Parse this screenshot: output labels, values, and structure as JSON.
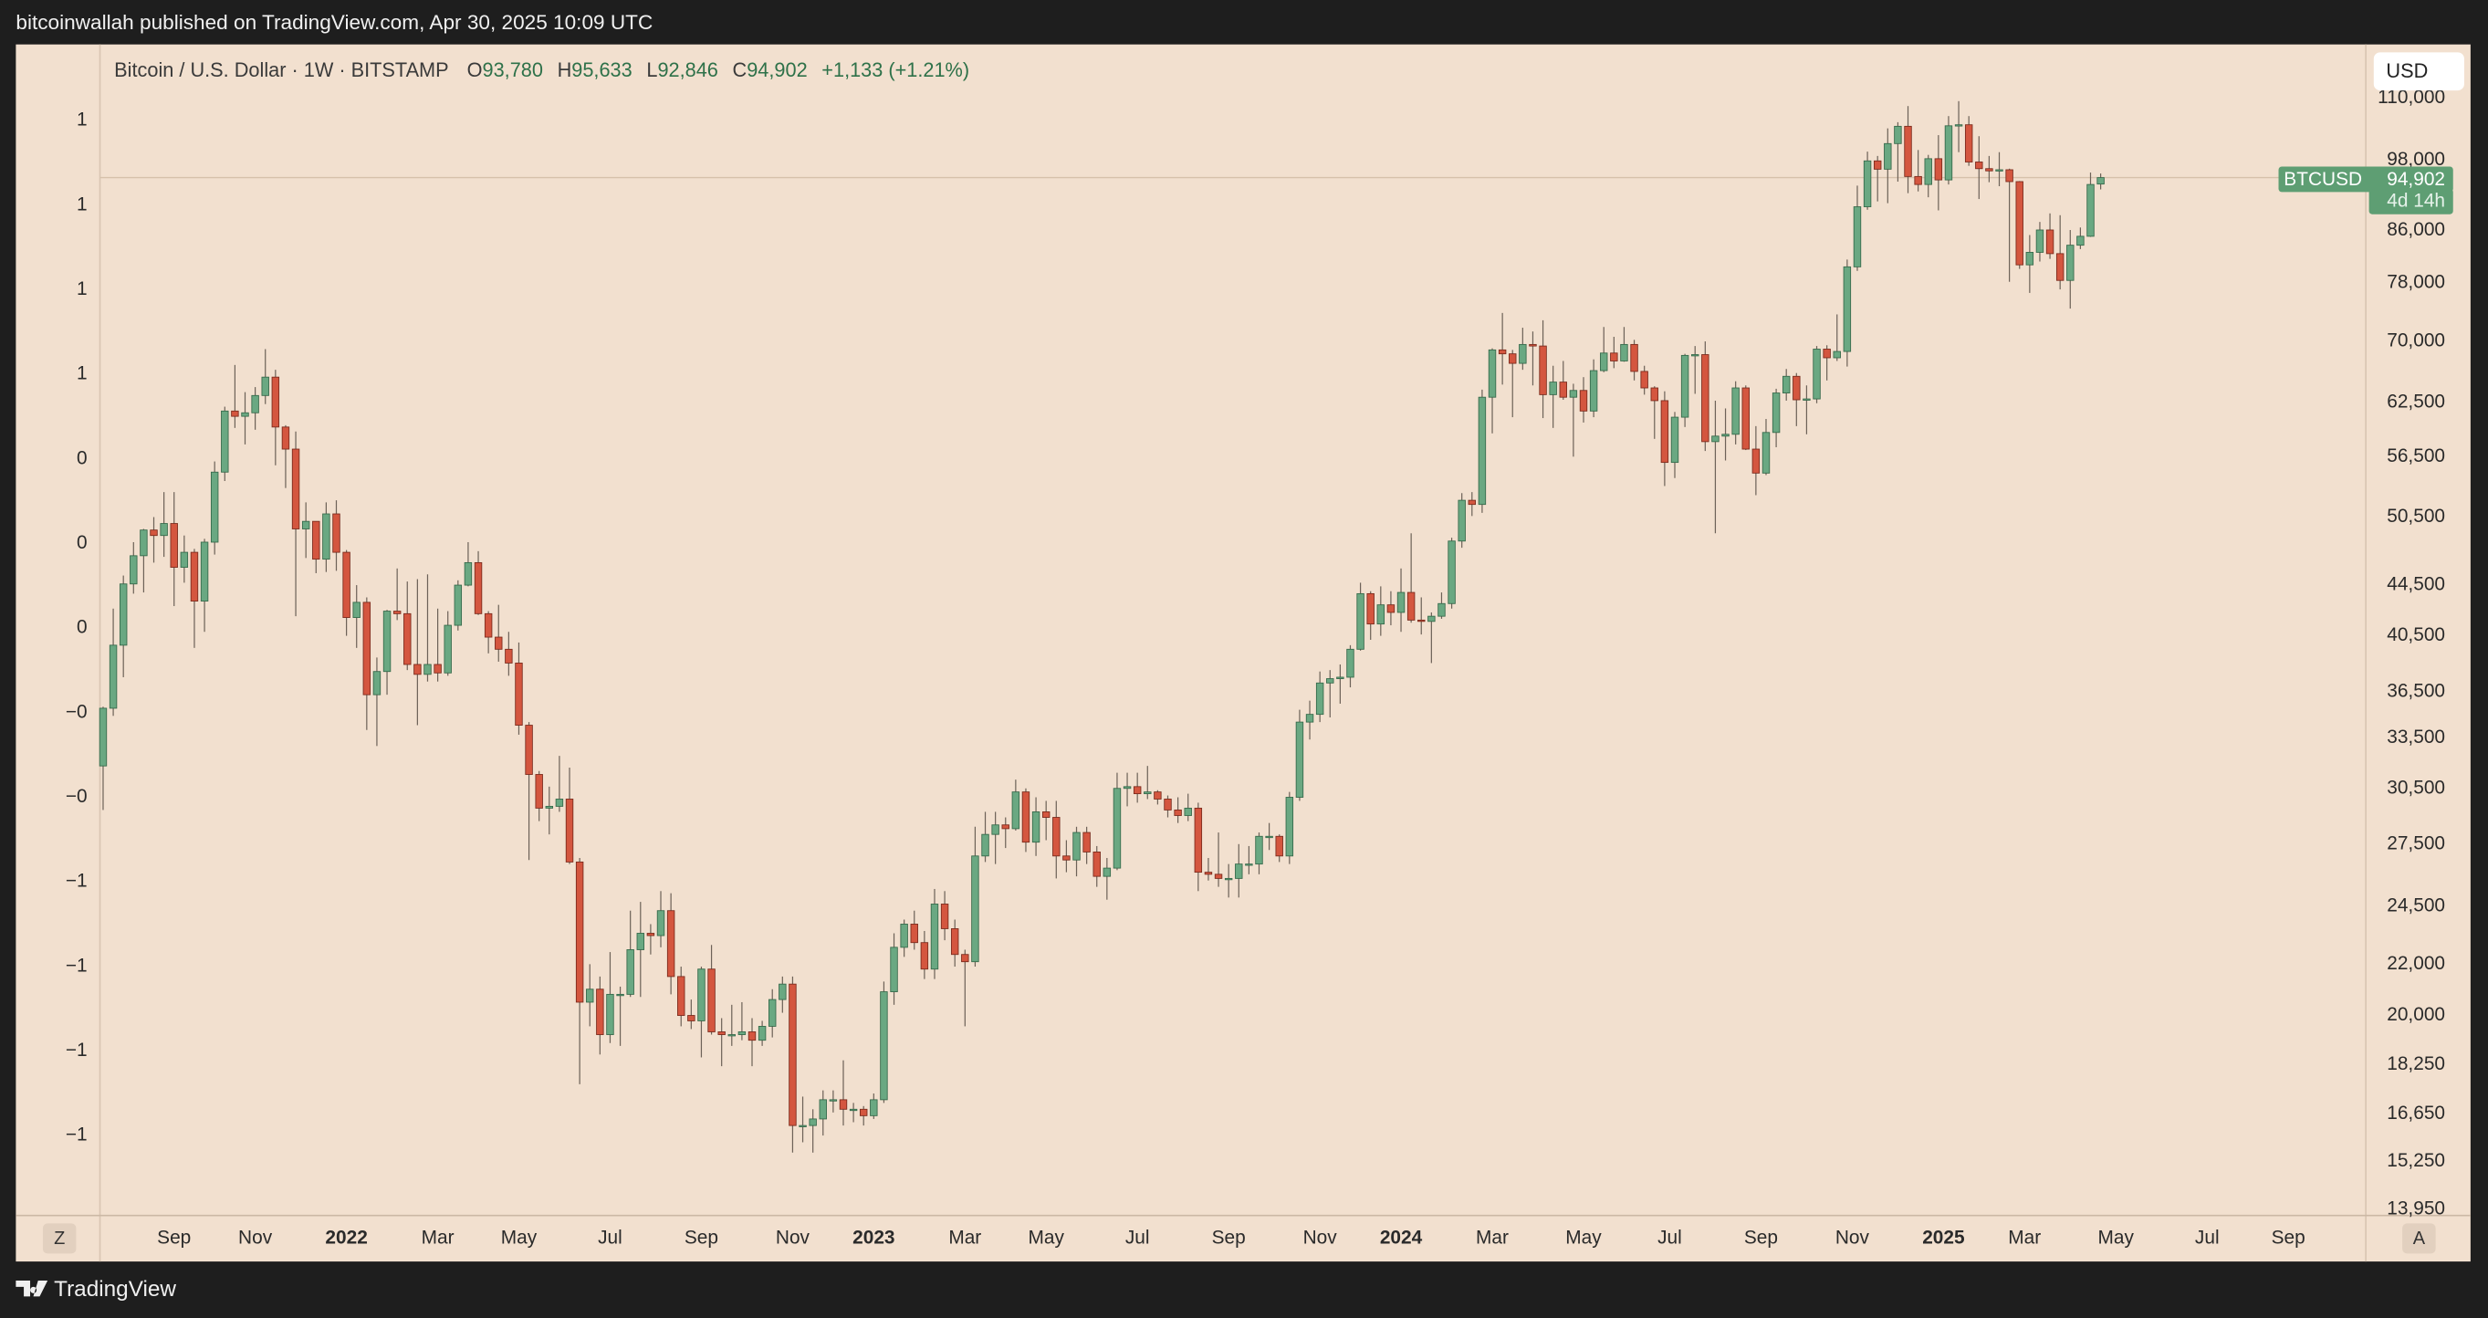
{
  "header": {
    "publisher": "bitcoinwallah published on TradingView.com, Apr 30, 2025 10:09 UTC"
  },
  "legend": {
    "symbol": "Bitcoin / U.S. Dollar · 1W · BITSTAMP",
    "ohlc": [
      {
        "key": "O",
        "value": "93,780"
      },
      {
        "key": "H",
        "value": "95,633"
      },
      {
        "key": "L",
        "value": "92,846"
      },
      {
        "key": "C",
        "value": "94,902"
      }
    ],
    "change": "+1,133 (+1.21%)"
  },
  "currency": "USD",
  "price_tag": {
    "symbol": "BTCUSD",
    "value": "94,902",
    "countdown": "4d 14h"
  },
  "left_scale": [
    "1",
    "1",
    "1",
    "1",
    "0",
    "0",
    "0",
    "−0",
    "−0",
    "−1",
    "−1",
    "−1",
    "−1"
  ],
  "axis_buttons": {
    "left": "Z",
    "right": "A"
  },
  "brand": "TradingView",
  "chart_data": {
    "type": "candlestick",
    "log_scale": true,
    "grid": false,
    "up_color": "#6aa882",
    "down_color": "#d4563f",
    "xlim": [
      -0.31,
      223.15
    ],
    "xticks": [
      {
        "value": 7,
        "label": "Sep"
      },
      {
        "value": 15,
        "label": "Nov"
      },
      {
        "value": 24,
        "label": "2022"
      },
      {
        "value": 33,
        "label": "Mar"
      },
      {
        "value": 41,
        "label": "May"
      },
      {
        "value": 50,
        "label": "Jul"
      },
      {
        "value": 59,
        "label": "Sep"
      },
      {
        "value": 68,
        "label": "Nov"
      },
      {
        "value": 76,
        "label": "2023"
      },
      {
        "value": 85,
        "label": "Mar"
      },
      {
        "value": 93,
        "label": "May"
      },
      {
        "value": 102,
        "label": "Jul"
      },
      {
        "value": 111,
        "label": "Sep"
      },
      {
        "value": 120,
        "label": "Nov"
      },
      {
        "value": 128,
        "label": "2024"
      },
      {
        "value": 137,
        "label": "Mar"
      },
      {
        "value": 146,
        "label": "May"
      },
      {
        "value": 154.5,
        "label": "Jul"
      },
      {
        "value": 163.5,
        "label": "Sep"
      },
      {
        "value": 172.5,
        "label": "Nov"
      },
      {
        "value": 181.5,
        "label": "2025"
      },
      {
        "value": 189.5,
        "label": "Mar"
      },
      {
        "value": 198.5,
        "label": "May"
      },
      {
        "value": 207.5,
        "label": "Jul"
      },
      {
        "value": 215.5,
        "label": "Sep"
      }
    ],
    "ylim": [
      13790,
      121200
    ],
    "yticks": [
      {
        "value": 13950,
        "label": "13,950"
      },
      {
        "value": 15250,
        "label": "15,250"
      },
      {
        "value": 16650,
        "label": "16,650"
      },
      {
        "value": 18250,
        "label": "18,250"
      },
      {
        "value": 20000,
        "label": "20,000"
      },
      {
        "value": 22000,
        "label": "22,000"
      },
      {
        "value": 24500,
        "label": "24,500"
      },
      {
        "value": 27500,
        "label": "27,500"
      },
      {
        "value": 30500,
        "label": "30,500"
      },
      {
        "value": 33500,
        "label": "33,500"
      },
      {
        "value": 36500,
        "label": "36,500"
      },
      {
        "value": 40500,
        "label": "40,500"
      },
      {
        "value": 44500,
        "label": "44,500"
      },
      {
        "value": 50500,
        "label": "50,500"
      },
      {
        "value": 56500,
        "label": "56,500"
      },
      {
        "value": 62500,
        "label": "62,500"
      },
      {
        "value": 70000,
        "label": "70,000"
      },
      {
        "value": 78000,
        "label": "78,000"
      },
      {
        "value": 86000,
        "label": "86,000"
      },
      {
        "value": 98000,
        "label": "98,000"
      },
      {
        "value": 110000,
        "label": "110,000"
      }
    ],
    "x": [
      0,
      1,
      2,
      3,
      4,
      5,
      6,
      7,
      8,
      9,
      10,
      11,
      12,
      13,
      14,
      15,
      16,
      17,
      18,
      19,
      20,
      21,
      22,
      23,
      24,
      25,
      26,
      27,
      28,
      29,
      30,
      31,
      32,
      33,
      34,
      35,
      36,
      37,
      38,
      39,
      40,
      41,
      42,
      43,
      44,
      45,
      46,
      47,
      48,
      49,
      50,
      51,
      52,
      53,
      54,
      55,
      56,
      57,
      58,
      59,
      60,
      61,
      62,
      63,
      64,
      65,
      66,
      67,
      68,
      69,
      70,
      71,
      72,
      73,
      74,
      75,
      76,
      77,
      78,
      79,
      80,
      81,
      82,
      83,
      84,
      85,
      86,
      87,
      88,
      89,
      90,
      91,
      92,
      93,
      94,
      95,
      96,
      97,
      98,
      99,
      100,
      101,
      102,
      103,
      104,
      105,
      106,
      107,
      108,
      109,
      110,
      111,
      112,
      113,
      114,
      115,
      116,
      117,
      118,
      119,
      120,
      121,
      122,
      123,
      124,
      125,
      126,
      127,
      128,
      129,
      130,
      131,
      132,
      133,
      134,
      135,
      136,
      137,
      138,
      139,
      140,
      141,
      142,
      143,
      144,
      145,
      146,
      147,
      148,
      149,
      150,
      151,
      152,
      153,
      154,
      155,
      156,
      157,
      158,
      159,
      160,
      161,
      162,
      163,
      164,
      165,
      166,
      167,
      168,
      169,
      170,
      171,
      172,
      173,
      174,
      175,
      176,
      177,
      178,
      179,
      180,
      181,
      182,
      183,
      184,
      185,
      186,
      187,
      188,
      189,
      190,
      191,
      192,
      193,
      194,
      195,
      196,
      197
    ],
    "open": [
      31800,
      35400,
      39800,
      44600,
      47000,
      49300,
      48800,
      49900,
      46000,
      47300,
      43200,
      48200,
      54900,
      61500,
      60900,
      61300,
      63300,
      65500,
      59700,
      57300,
      49400,
      50100,
      46700,
      50800,
      47300,
      41900,
      43100,
      36300,
      37900,
      42400,
      42200,
      38400,
      37700,
      38400,
      37800,
      41300,
      44500,
      46400,
      42200,
      40400,
      39500,
      38500,
      34300,
      31300,
      29400,
      29500,
      29900,
      26600,
      20500,
      21000,
      19300,
      20800,
      20800,
      22600,
      23300,
      23200,
      24300,
      21500,
      20000,
      19800,
      21800,
      19400,
      19300,
      19300,
      19400,
      19100,
      19600,
      20600,
      21200,
      16300,
      16300,
      16500,
      17100,
      17100,
      16800,
      16800,
      16600,
      17100,
      20900,
      22700,
      23700,
      22900,
      21800,
      24600,
      23500,
      22400,
      22100,
      26900,
      28000,
      28500,
      28300,
      30300,
      27600,
      29200,
      28900,
      26900,
      26700,
      28100,
      27100,
      25900,
      26300,
      30500,
      30600,
      30200,
      30300,
      29900,
      29300,
      29000,
      29400,
      26100,
      26000,
      25800,
      25800,
      26500,
      26500,
      27900,
      27900,
      26900,
      30000,
      34500,
      35000,
      37100,
      37400,
      37500,
      39500,
      43800,
      41400,
      42900,
      42300,
      43900,
      41700,
      41600,
      42000,
      43000,
      48300,
      52100,
      51700,
      63100,
      68900,
      68400,
      67200,
      69600,
      69400,
      63400,
      64900,
      63100,
      63900,
      61500,
      66300,
      68500,
      67500,
      69600,
      66200,
      64200,
      62700,
      55900,
      60800,
      68200,
      68300,
      58100,
      58700,
      58900,
      64200,
      57300,
      54800,
      59100,
      63600,
      65600,
      62800,
      62900,
      69000,
      67900,
      68700,
      80400,
      89900,
      97900,
      96400,
      101100,
      104400,
      95100,
      93700,
      98300,
      94500,
      104500,
      104700,
      97700,
      96500,
      96100,
      96300,
      94200,
      80700,
      82600,
      86100,
      82400,
      78400,
      83700,
      85100,
      93780
    ],
    "high": [
      35500,
      42600,
      45300,
      48200,
      49400,
      50500,
      52900,
      52900,
      48800,
      47600,
      48500,
      56000,
      62000,
      67000,
      63700,
      64300,
      69000,
      66400,
      59900,
      59200,
      51900,
      50100,
      51900,
      52100,
      47500,
      44500,
      43500,
      38900,
      42500,
      45900,
      44800,
      45000,
      45400,
      42600,
      42400,
      44900,
      48200,
      47400,
      42400,
      42900,
      40800,
      40000,
      34500,
      31500,
      30600,
      32400,
      31700,
      26800,
      22000,
      21500,
      22500,
      21100,
      24300,
      24700,
      23700,
      25200,
      25100,
      21900,
      20600,
      21900,
      22800,
      19900,
      20400,
      20500,
      19900,
      19800,
      21000,
      21500,
      21500,
      17200,
      16800,
      17400,
      17400,
      18400,
      17000,
      16900,
      17300,
      21300,
      23300,
      23900,
      24300,
      23400,
      25300,
      25200,
      23900,
      22600,
      28400,
      29200,
      29200,
      28900,
      31000,
      30500,
      30000,
      29800,
      29800,
      27700,
      28400,
      28400,
      27400,
      26800,
      31400,
      31400,
      31400,
      31800,
      30400,
      30100,
      30000,
      30200,
      29700,
      26800,
      28100,
      26500,
      27500,
      27400,
      28100,
      28600,
      28000,
      30300,
      35300,
      35900,
      37900,
      38000,
      38400,
      39800,
      44700,
      44000,
      44400,
      44000,
      45900,
      49000,
      43500,
      42300,
      43900,
      48600,
      52800,
      52900,
      64000,
      69100,
      73800,
      68900,
      71800,
      71300,
      72800,
      66900,
      67500,
      64700,
      65500,
      67700,
      71900,
      70600,
      71900,
      70200,
      66900,
      64400,
      63800,
      61400,
      68400,
      69400,
      70000,
      62700,
      61800,
      65000,
      64500,
      59800,
      60600,
      64100,
      66500,
      66000,
      64500,
      69400,
      69500,
      73600,
      81500,
      93500,
      99600,
      98800,
      104000,
      105200,
      108400,
      99900,
      99000,
      102700,
      106400,
      109400,
      106400,
      102500,
      98800,
      99500,
      96500,
      94300,
      85300,
      87400,
      88800,
      88500,
      86100,
      86500,
      95800,
      95633
    ],
    "low": [
      29300,
      34900,
      37500,
      43800,
      43900,
      46400,
      46900,
      42800,
      44700,
      39600,
      40800,
      47100,
      54000,
      59600,
      57800,
      59400,
      62300,
      55600,
      53300,
      42000,
      46800,
      45500,
      45600,
      45700,
      40500,
      39600,
      34000,
      33000,
      36300,
      41700,
      38000,
      34300,
      37200,
      37200,
      37600,
      40900,
      44400,
      42100,
      39200,
      38600,
      37600,
      33700,
      26700,
      28700,
      28000,
      29200,
      26500,
      17600,
      19600,
      18600,
      19000,
      18900,
      20700,
      20700,
      22400,
      22700,
      20800,
      19600,
      19500,
      18500,
      19300,
      18200,
      18900,
      19100,
      18200,
      18900,
      19200,
      20100,
      15500,
      15800,
      15500,
      16000,
      16700,
      16300,
      16400,
      16300,
      16500,
      17000,
      20400,
      22300,
      22600,
      21400,
      21400,
      23000,
      21900,
      19600,
      21900,
      26600,
      26500,
      27300,
      28200,
      27100,
      26900,
      27700,
      25800,
      26100,
      25900,
      26500,
      25400,
      24800,
      26200,
      29500,
      29700,
      29900,
      29600,
      28900,
      28600,
      28700,
      25200,
      25700,
      25400,
      24900,
      24900,
      26000,
      26000,
      27200,
      26600,
      26500,
      29800,
      33400,
      34500,
      34800,
      35700,
      36800,
      39400,
      40200,
      40500,
      41300,
      40800,
      41500,
      40600,
      38500,
      41800,
      42600,
      47700,
      50600,
      50900,
      59000,
      64600,
      60800,
      66400,
      64500,
      60700,
      59600,
      62800,
      56500,
      60200,
      60800,
      66100,
      66600,
      67400,
      65100,
      63400,
      58400,
      53500,
      54300,
      59700,
      63500,
      57100,
      49000,
      56100,
      57800,
      57200,
      52600,
      54600,
      57500,
      62700,
      59800,
      58900,
      62400,
      65100,
      67500,
      66800,
      79800,
      89400,
      90800,
      90500,
      94200,
      92200,
      92500,
      91500,
      89300,
      93700,
      99500,
      97000,
      91200,
      94100,
      93400,
      78200,
      80100,
      76600,
      81200,
      81600,
      77100,
      74400,
      83100,
      85000,
      92846
    ],
    "close": [
      35400,
      39800,
      44600,
      47000,
      49300,
      48800,
      49900,
      46000,
      47300,
      43200,
      48200,
      54900,
      61500,
      60900,
      61300,
      63300,
      65500,
      59700,
      57300,
      49400,
      50100,
      46700,
      50800,
      47300,
      41900,
      43100,
      36300,
      37900,
      42400,
      42200,
      38400,
      37700,
      38400,
      37800,
      41300,
      44500,
      46400,
      42200,
      40400,
      39500,
      38500,
      34300,
      31300,
      29400,
      29500,
      29900,
      26600,
      20500,
      21000,
      19300,
      20800,
      20800,
      22600,
      23300,
      23200,
      24300,
      21500,
      20000,
      19800,
      21800,
      19400,
      19300,
      19300,
      19400,
      19100,
      19600,
      20600,
      21200,
      16300,
      16300,
      16500,
      17100,
      17100,
      16800,
      16800,
      16600,
      17100,
      20900,
      22700,
      23700,
      22900,
      21800,
      24600,
      23500,
      22400,
      22100,
      26900,
      28000,
      28500,
      28300,
      30300,
      27600,
      29200,
      28900,
      26900,
      26700,
      28100,
      27100,
      25900,
      26300,
      30500,
      30600,
      30200,
      30300,
      29900,
      29300,
      29000,
      29400,
      26100,
      26000,
      25800,
      25800,
      26500,
      26500,
      27900,
      27900,
      26900,
      30000,
      34500,
      35000,
      37100,
      37400,
      37500,
      39500,
      43800,
      41400,
      42900,
      42300,
      43900,
      41700,
      41600,
      42000,
      43000,
      48300,
      52100,
      51700,
      63100,
      68900,
      68400,
      67200,
      69600,
      69400,
      63400,
      64900,
      63100,
      63900,
      61500,
      66300,
      68500,
      67500,
      69600,
      66200,
      64200,
      62700,
      55900,
      60800,
      68200,
      68300,
      58100,
      58700,
      58900,
      64200,
      57300,
      54800,
      59100,
      63600,
      65600,
      62800,
      62900,
      69000,
      67900,
      68700,
      80400,
      89900,
      97900,
      96400,
      101100,
      104400,
      95100,
      93700,
      98300,
      94500,
      104500,
      104700,
      97700,
      96500,
      96100,
      96300,
      94200,
      80700,
      82600,
      86100,
      82400,
      78400,
      83700,
      85100,
      93700,
      94902
    ]
  }
}
